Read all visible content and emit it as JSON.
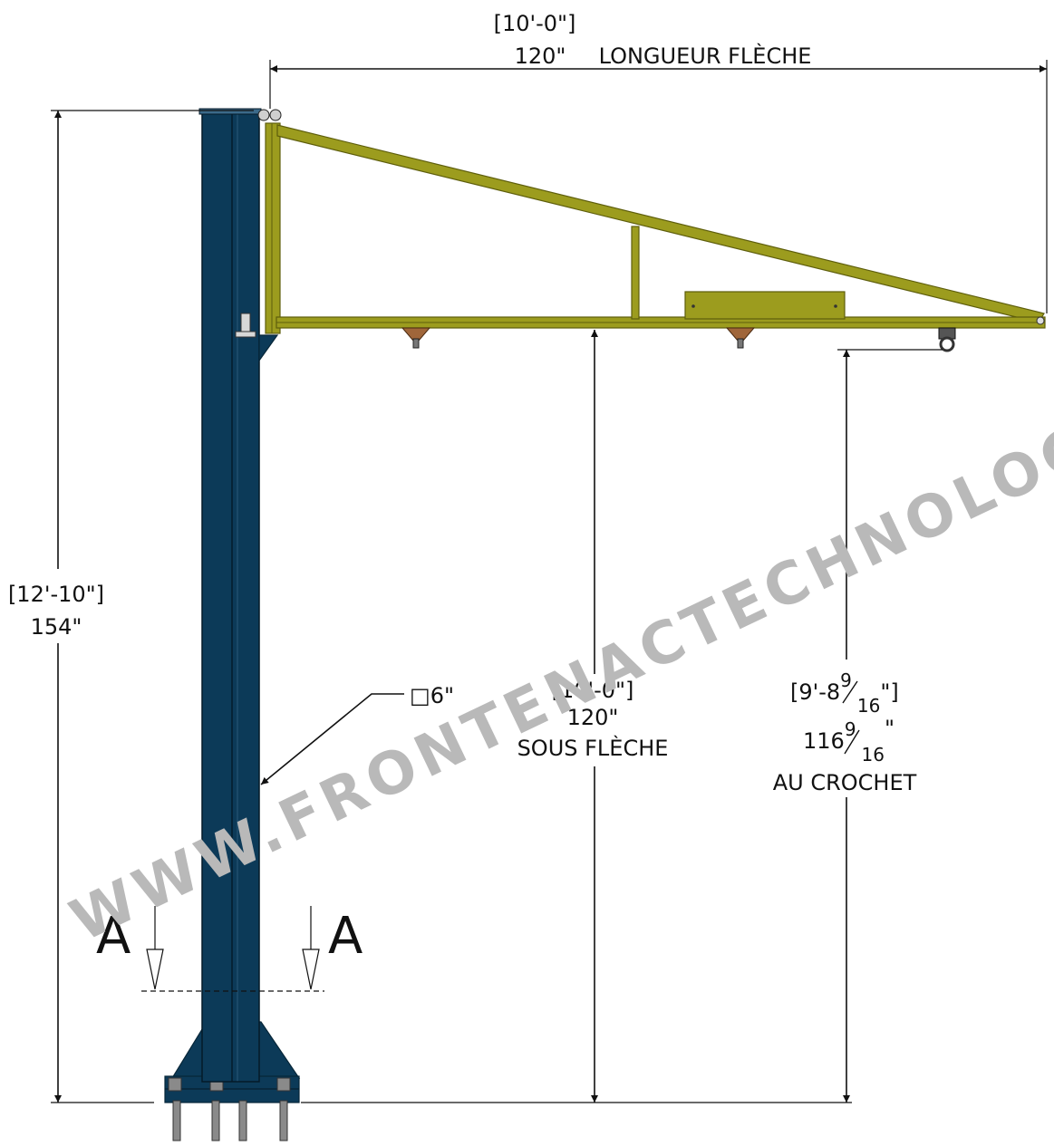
{
  "colors": {
    "column": "#0c3a58",
    "column_dark": "#072638",
    "boom": "#9c9c1e",
    "boom_dark": "#5e5e0c",
    "bracket": "#a0663a",
    "watermark": "#b9b9b9",
    "line": "#111111"
  },
  "dimensions": {
    "boom_length": {
      "feet": "[10'-0\"]",
      "inches": "120\"",
      "label": "LONGUEUR FLÈCHE"
    },
    "overall_height": {
      "feet": "[12'-10\"]",
      "inches": "154\""
    },
    "under_boom": {
      "feet": "[10'-0\"]",
      "inches": "120\"",
      "label": "SOUS FLÈCHE"
    },
    "hook_height": {
      "feet_whole": "[9'-8",
      "feet_close": "\"]",
      "inch_whole": "116",
      "inch_close": "\"",
      "frac_num": "9",
      "frac_den": "16",
      "label": "AU CROCHET"
    },
    "column_size": {
      "symbol": "□",
      "value": "6\""
    }
  },
  "section": {
    "left": "A",
    "right": "A"
  },
  "watermark": "WWW.FRONTENACTECHNOLOGIES"
}
